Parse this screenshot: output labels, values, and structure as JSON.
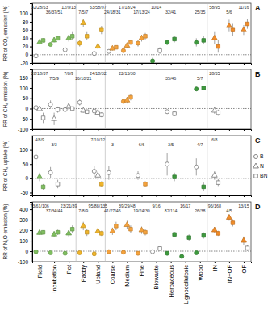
{
  "chart_data": [
    {
      "type": "scatter",
      "title": "A",
      "y_label": "RR of CO₂ emission (%)",
      "tick_labels": "y",
      "categories": [
        "Field",
        "Incubation",
        "Pot",
        "Paddy",
        "Upland",
        "Coarse",
        "Medium",
        "Fine",
        "Biowaste",
        "Herbaceous",
        "Lignocellulosic",
        "Wood",
        "IN",
        "IN+OF",
        "OF"
      ],
      "ylim": [
        -20,
        125
      ],
      "yticks": [
        -20,
        0,
        20,
        40,
        60,
        80,
        100
      ],
      "annotations": [
        "32/28/53",
        "36/37/51",
        "12/9/13",
        "7/5/7",
        "63/58/97",
        "24/18/31",
        "17/18/24",
        "17/13/24",
        "10/14",
        "32/41",
        null,
        "25/35",
        "58/95",
        "5/6",
        "11/16"
      ],
      "series": [
        {
          "name": "B",
          "marker": "circle",
          "values": [
            -3,
            25,
            12,
            28,
            3,
            8,
            10,
            28,
            -15,
            30,
            null,
            30,
            null,
            null,
            null
          ],
          "errors": [
            3,
            4,
            6,
            8,
            4,
            5,
            5,
            8,
            8,
            6,
            null,
            10,
            null,
            null,
            null
          ],
          "colors": [
            "#ffffff",
            "#7fbf5f",
            "#ffffff",
            "#f0b52b",
            "#ffffff",
            "#ffffff",
            "#f5a23c",
            "#f5a23c",
            "#3e9a3e",
            "#3e9a3e",
            null,
            "#3e9a3e",
            null,
            null,
            null
          ]
        },
        {
          "name": "N",
          "marker": "triangle",
          "values": [
            30,
            35,
            40,
            77,
            20,
            15,
            22,
            40,
            null,
            null,
            null,
            null,
            40,
            70,
            60
          ],
          "errors": [
            5,
            5,
            8,
            10,
            6,
            5,
            6,
            8,
            null,
            null,
            null,
            null,
            15,
            15,
            12
          ],
          "colors": [
            "#7fbf5f",
            "#7fbf5f",
            "#7fbf5f",
            "#f0b52b",
            "#f0b52b",
            "#f5a23c",
            "#f5a23c",
            "#f5a23c",
            null,
            null,
            null,
            null,
            "#f28c28",
            "#f28c28",
            "#f28c28"
          ]
        },
        {
          "name": "BN",
          "marker": "square",
          "values": [
            35,
            40,
            45,
            45,
            60,
            18,
            30,
            45,
            10,
            38,
            null,
            35,
            20,
            60,
            75
          ],
          "errors": [
            5,
            5,
            10,
            10,
            10,
            5,
            6,
            8,
            8,
            8,
            null,
            10,
            15,
            15,
            12
          ],
          "colors": [
            "#7fbf5f",
            "#7fbf5f",
            "#7fbf5f",
            "#f0b52b",
            "#f0b52b",
            "#f5a23c",
            "#f5a23c",
            "#f5a23c",
            "#ffffff",
            "#3e9a3e",
            null,
            "#3e9a3e",
            "#f28c28",
            "#f28c28",
            "#f28c28"
          ]
        }
      ]
    },
    {
      "type": "scatter",
      "title": "B",
      "y_label": "RR of CH₄ emission (%)",
      "tick_labels": "y",
      "categories": [
        "Field",
        "Incubation",
        "Pot",
        "Paddy",
        "Upland",
        "Coarse",
        "Medium",
        "Fine",
        "Biowaste",
        "Herbaceous",
        "Lignocellulosic",
        "Wood",
        "IN",
        "IN+OF",
        "OF"
      ],
      "ylim": [
        -100,
        190
      ],
      "yticks": [
        -100,
        -50,
        0,
        50,
        100,
        150
      ],
      "annotations": [
        "28/18/37",
        "7/5/9",
        "7/8/9",
        "16/10/21",
        "24/18/32",
        null,
        "22/15/30",
        null,
        null,
        "35/46",
        null,
        "5/7",
        "28/55",
        null,
        null
      ],
      "series": [
        {
          "name": "B",
          "marker": "circle",
          "values": [
            5,
            20,
            -5,
            30,
            -12,
            null,
            35,
            null,
            null,
            -15,
            null,
            95,
            null,
            null,
            null
          ],
          "errors": [
            8,
            20,
            10,
            15,
            10,
            null,
            10,
            null,
            null,
            10,
            null,
            10,
            null,
            null,
            null
          ],
          "colors": [
            "#ffffff",
            "#ffffff",
            "#ffffff",
            "#ffffff",
            "#ffffff",
            null,
            "#f5a23c",
            null,
            null,
            "#ffffff",
            null,
            "#3e9a3e",
            null,
            null,
            null
          ]
        },
        {
          "name": "N",
          "marker": "triangle",
          "values": [
            -2,
            -50,
            10,
            -10,
            -20,
            null,
            40,
            null,
            null,
            null,
            null,
            null,
            -10,
            null,
            null
          ],
          "errors": [
            10,
            30,
            15,
            10,
            10,
            null,
            15,
            null,
            null,
            null,
            null,
            null,
            15,
            null,
            null
          ],
          "colors": [
            "#ffffff",
            "#ffffff",
            "#ffffff",
            "#ffffff",
            "#ffffff",
            null,
            "#f5a23c",
            null,
            null,
            null,
            null,
            null,
            "#ffffff",
            null,
            null
          ]
        },
        {
          "name": "BN",
          "marker": "square",
          "values": [
            -45,
            -5,
            0,
            -15,
            -30,
            null,
            55,
            null,
            null,
            -25,
            null,
            100,
            -20,
            null,
            null
          ],
          "errors": [
            25,
            15,
            10,
            10,
            12,
            null,
            15,
            null,
            null,
            12,
            null,
            10,
            15,
            null,
            null
          ],
          "colors": [
            "#ffffff",
            "#ffffff",
            "#ffffff",
            "#ffffff",
            "#ffffff",
            null,
            "#f5a23c",
            null,
            null,
            "#ffffff",
            null,
            "#3e9a3e",
            "#ffffff",
            null,
            null
          ]
        }
      ]
    },
    {
      "type": "scatter",
      "title": "C",
      "y_label": "RR of CH₄ uptake (%)",
      "tick_labels": "y",
      "legend": "right",
      "categories": [
        "Field",
        "Incubation",
        "Pot",
        "Paddy",
        "Upland",
        "Coarse",
        "Medium",
        "Fine",
        "Biowaste",
        "Herbaceous",
        "Lignocellulosic",
        "Wood",
        "IN",
        "IN+OF",
        "OF"
      ],
      "ylim": [
        -60,
        150
      ],
      "yticks": [
        -50,
        0,
        50,
        100
      ],
      "annotations": [
        "4/8/9",
        "3/3",
        null,
        null,
        "7/10/12",
        "3",
        null,
        "6/6",
        null,
        "3/5",
        null,
        "4/7",
        "6/8",
        null,
        null
      ],
      "series": [
        {
          "name": "B",
          "marker": "circle",
          "values": [
            75,
            20,
            null,
            null,
            25,
            20,
            null,
            10,
            null,
            50,
            null,
            40,
            null,
            null,
            null
          ],
          "errors": [
            30,
            20,
            null,
            null,
            20,
            25,
            null,
            15,
            null,
            40,
            null,
            30,
            null,
            null,
            null
          ],
          "colors": [
            "#ffffff",
            "#ffffff",
            null,
            null,
            "#ffffff",
            "#ffffff",
            null,
            "#ffffff",
            null,
            "#ffffff",
            null,
            "#ffffff",
            null,
            null,
            null
          ]
        },
        {
          "name": "N",
          "marker": "triangle",
          "values": [
            5,
            null,
            null,
            null,
            10,
            null,
            null,
            null,
            null,
            null,
            null,
            null,
            10,
            null,
            null
          ],
          "errors": [
            15,
            null,
            null,
            null,
            15,
            null,
            null,
            null,
            null,
            null,
            null,
            null,
            15,
            null,
            null
          ],
          "colors": [
            "#7fbf5f",
            null,
            null,
            null,
            "#ffffff",
            null,
            null,
            null,
            null,
            null,
            null,
            null,
            "#ffffff",
            null,
            null
          ]
        },
        {
          "name": "BN",
          "marker": "square",
          "values": [
            -30,
            -20,
            null,
            null,
            -20,
            null,
            null,
            -20,
            null,
            5,
            null,
            -30,
            -15,
            null,
            null
          ],
          "errors": [
            10,
            15,
            null,
            null,
            10,
            null,
            null,
            10,
            null,
            15,
            null,
            15,
            12,
            null,
            null
          ],
          "colors": [
            "#7fbf5f",
            "#ffffff",
            null,
            null,
            "#f0b52b",
            null,
            null,
            "#f5a23c",
            null,
            "#3e9a3e",
            null,
            "#3e9a3e",
            "#ffffff",
            null,
            null
          ]
        }
      ]
    },
    {
      "type": "scatter",
      "title": "D",
      "y_label": "RR of N₂O emission (%)",
      "categories": [
        "Field",
        "Incubation",
        "Pot",
        "Paddy",
        "Upland",
        "Coarse",
        "Medium",
        "Fine",
        "Biowaste",
        "Herbaceous",
        "Lignocellulosic",
        "Wood",
        "IN",
        "IN+OF",
        "OF"
      ],
      "ylim": [
        -100,
        470
      ],
      "yticks": [
        -100,
        0,
        100,
        200,
        300,
        400
      ],
      "annotations": [
        "73/61/106",
        "37/34/44",
        "23/21/39",
        "7/8/9",
        "95/88/135",
        "41/27/46",
        "39/29/48",
        "19/24/30",
        "9/16",
        "82/114",
        "16/17",
        "26/38",
        "96/168",
        "4/5",
        "13/15"
      ],
      "series": [
        {
          "name": "B",
          "marker": "circle",
          "values": [
            -5,
            -15,
            -20,
            -15,
            -25,
            -5,
            -10,
            -20,
            -5,
            -20,
            -50,
            -15,
            null,
            null,
            null
          ],
          "errors": [
            5,
            8,
            8,
            10,
            8,
            10,
            10,
            10,
            10,
            8,
            15,
            10,
            null,
            null,
            null
          ],
          "colors": [
            "#7fbf5f",
            "#7fbf5f",
            "#7fbf5f",
            "#f0b52b",
            "#f0b52b",
            "#f5a23c",
            "#f5a23c",
            "#f5a23c",
            "#ffffff",
            "#3e9a3e",
            "#3e9a3e",
            "#3e9a3e",
            null,
            null,
            null
          ]
        },
        {
          "name": "N",
          "marker": "triangle",
          "values": [
            175,
            160,
            170,
            240,
            190,
            190,
            250,
            200,
            null,
            null,
            null,
            null,
            200,
            320,
            100
          ],
          "errors": [
            20,
            25,
            30,
            40,
            25,
            35,
            40,
            35,
            null,
            null,
            null,
            null,
            30,
            30,
            40
          ],
          "colors": [
            "#7fbf5f",
            "#7fbf5f",
            "#7fbf5f",
            "#f0b52b",
            "#f0b52b",
            "#f5a23c",
            "#f5a23c",
            "#f5a23c",
            null,
            null,
            null,
            null,
            "#f28c28",
            "#f28c28",
            "#f28c28"
          ]
        },
        {
          "name": "BN",
          "marker": "square",
          "values": [
            180,
            180,
            210,
            180,
            170,
            240,
            210,
            180,
            25,
            160,
            130,
            150,
            170,
            270,
            30
          ],
          "errors": [
            20,
            25,
            35,
            35,
            25,
            40,
            35,
            30,
            20,
            25,
            30,
            30,
            25,
            35,
            30
          ],
          "colors": [
            "#7fbf5f",
            "#7fbf5f",
            "#7fbf5f",
            "#f0b52b",
            "#f0b52b",
            "#f5a23c",
            "#f5a23c",
            "#f5a23c",
            "#ffffff",
            "#3e9a3e",
            "#3e9a3e",
            "#3e9a3e",
            "#f28c28",
            "#f28c28",
            "#ffffff"
          ]
        }
      ]
    }
  ]
}
